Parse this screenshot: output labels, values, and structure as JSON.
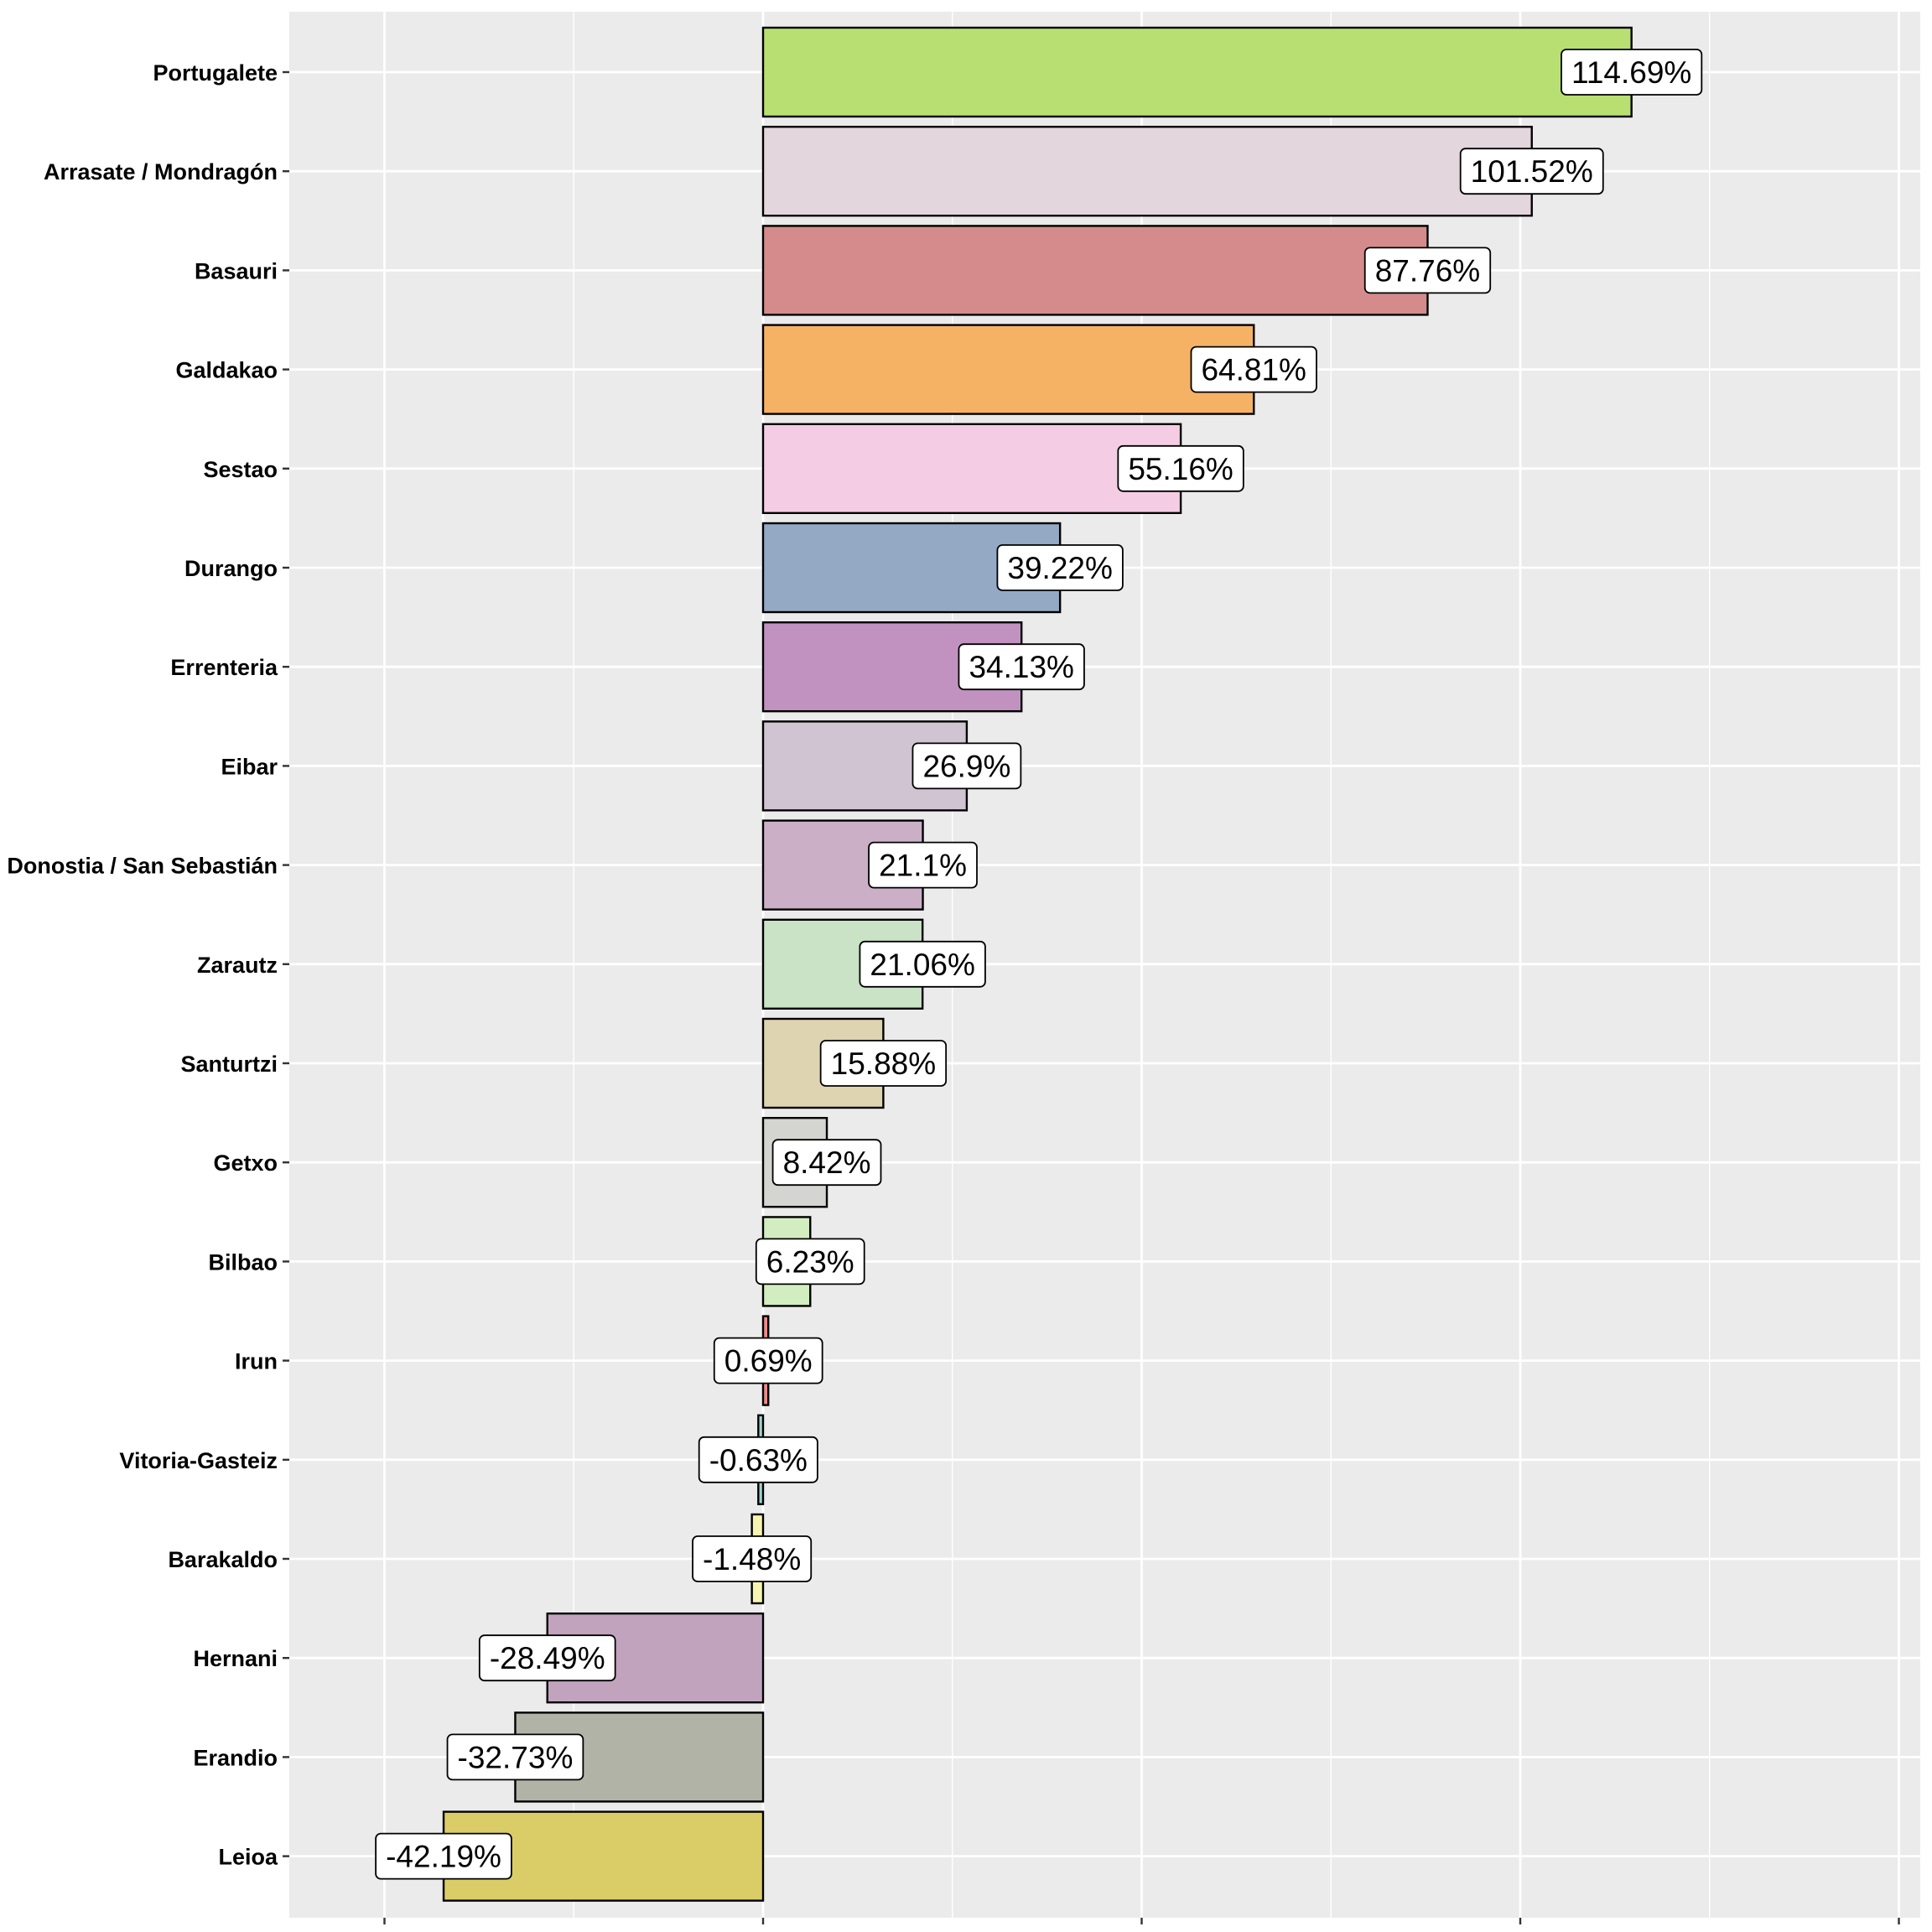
{
  "chart_data": {
    "type": "bar",
    "orientation": "horizontal",
    "title": "",
    "xlabel": "",
    "ylabel": "",
    "xlim": [
      -50,
      150
    ],
    "x_gridlines": [
      -50,
      0,
      50,
      100,
      150
    ],
    "x_tick_labels_shown": false,
    "grid": true,
    "legend": "none",
    "value_suffix": "%",
    "categories": [
      "Portugalete",
      "Arrasate / Mondragón",
      "Basauri",
      "Galdakao",
      "Sestao",
      "Durango",
      "Errenteria",
      "Eibar",
      "Donostia / San Sebastián",
      "Zarautz",
      "Santurtzi",
      "Getxo",
      "Bilbao",
      "Irun",
      "Vitoria-Gasteiz",
      "Barakaldo",
      "Hernani",
      "Erandio",
      "Leioa"
    ],
    "values": [
      114.69,
      101.52,
      87.76,
      64.81,
      55.16,
      39.22,
      34.13,
      26.9,
      21.1,
      21.06,
      15.88,
      8.42,
      6.23,
      0.69,
      -0.63,
      -1.48,
      -28.49,
      -32.73,
      -42.19
    ],
    "labels": [
      "114.69%",
      "101.52%",
      "87.76%",
      "64.81%",
      "55.16%",
      "39.22%",
      "34.13%",
      "26.9%",
      "21.1%",
      "21.06%",
      "15.88%",
      "8.42%",
      "6.23%",
      "0.69%",
      "-0.63%",
      "-1.48%",
      "-28.49%",
      "-32.73%",
      "-42.19%"
    ],
    "colors": [
      "#b8df72",
      "#e3d6dd",
      "#d58b8b",
      "#f5b265",
      "#f4cde4",
      "#93a9c4",
      "#c192c0",
      "#d0c3d2",
      "#cbafc7",
      "#cae2c6",
      "#ded4b2",
      "#d4d4d0",
      "#d2edbf",
      "#ee8a8a",
      "#9dd3cf",
      "#f7f4b0",
      "#c2a3be",
      "#b2b3a7",
      "#dacd68"
    ],
    "panel_background": "#ebebeb",
    "grid_color": "#ffffff"
  }
}
